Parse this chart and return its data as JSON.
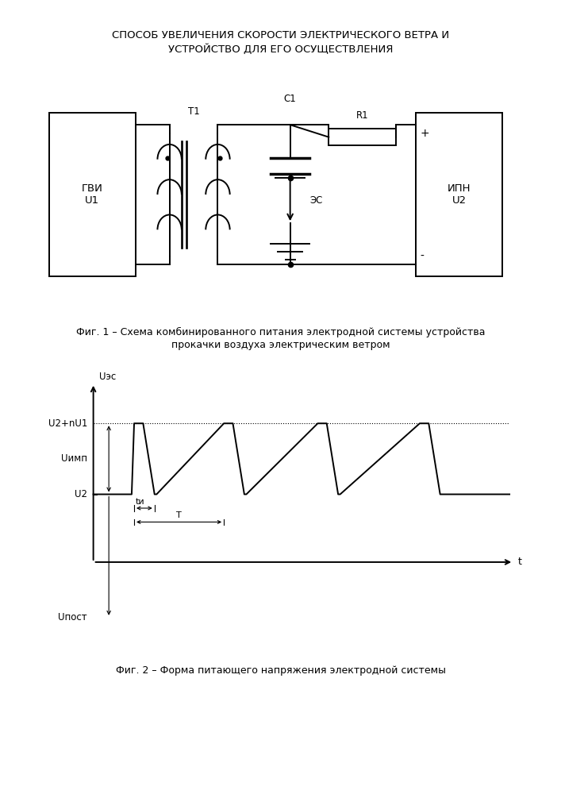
{
  "title_line1": "СПОСОБ УВЕЛИЧЕНИЯ СКОРОСТИ ЭЛЕКТРИЧЕСКОГО ВЕТРА И",
  "title_line2": "УСТРОЙСТВО ДЛЯ ЕГО ОСУЩЕСТВЛЕНИЯ",
  "fig1_caption_line1": "Фиг. 1 – Схема комбинированного питания электродной системы устройства",
  "fig1_caption_line2": "прокачки воздуха электрическим ветром",
  "fig2_caption": "Фиг. 2 – Форма питающего напряжения электродной системы",
  "label_GVI": "ГВИ\nU1",
  "label_T1": "T1",
  "label_C1": "C1",
  "label_R1": "R1",
  "label_ES": "ЭС",
  "label_IPN": "ИПН\nU2",
  "label_plus": "+",
  "label_minus": "-",
  "label_Uec": "Uэс",
  "label_U2nU1": "U2+nU1",
  "label_Uimp": "Uимп",
  "label_U2": "U2",
  "label_Upost": "Uпост",
  "label_ti": "tи",
  "label_T": "T",
  "label_t": "t",
  "bg_color": "#ffffff",
  "line_color": "#000000"
}
